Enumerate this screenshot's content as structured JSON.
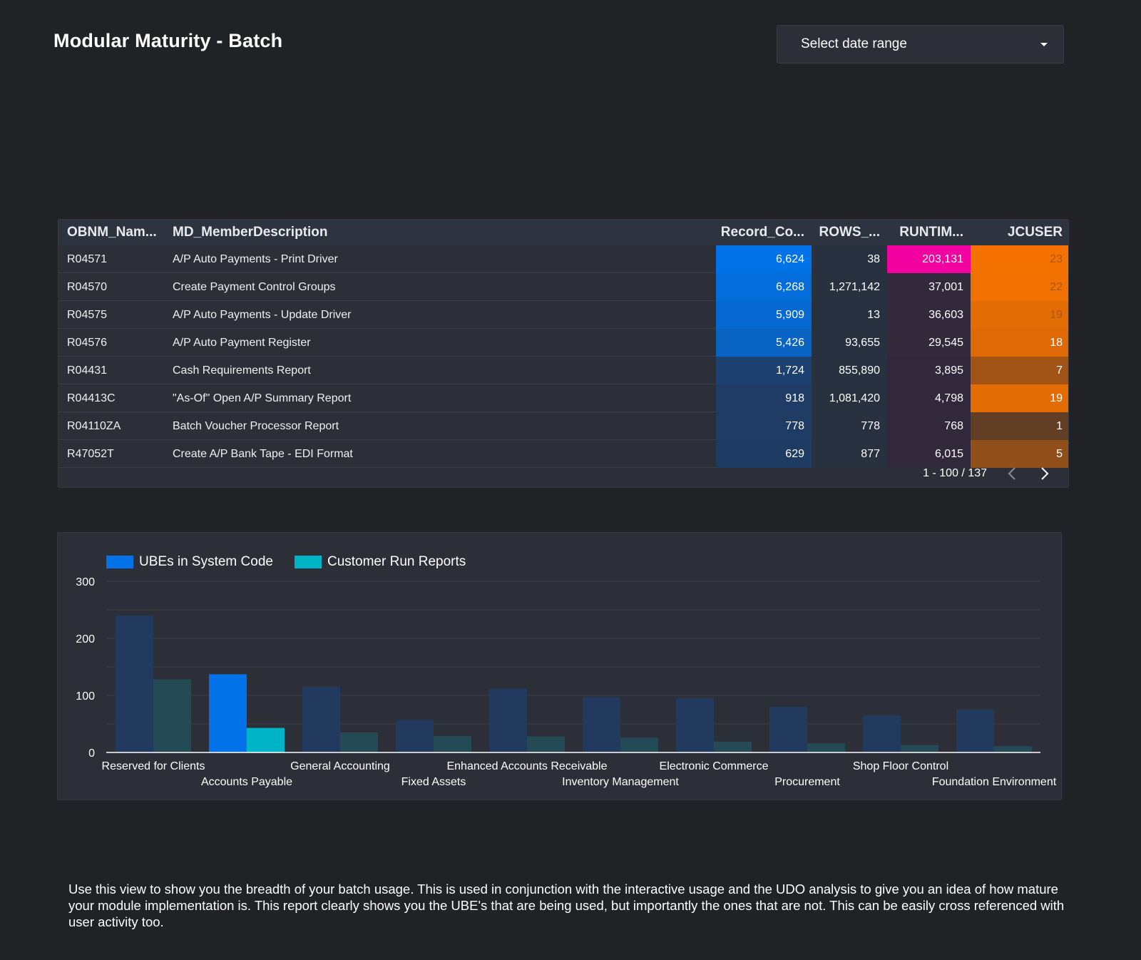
{
  "header": {
    "title": "Modular Maturity - Batch",
    "date_range_placeholder": "Select date range"
  },
  "table": {
    "columns": [
      "OBNM_Nam...",
      "MD_MemberDescription",
      "Record_Co...",
      "ROWS_...",
      "RUNTIM...",
      "JCUSER"
    ],
    "rows": [
      {
        "obnm": "R04571",
        "desc": "A/P Auto Payments - Print Driver",
        "record": "6,624",
        "rows": "38",
        "runtime": "203,131",
        "jcuser": "23"
      },
      {
        "obnm": "R04570",
        "desc": "Create Payment Control Groups",
        "record": "6,268",
        "rows": "1,271,142",
        "runtime": "37,001",
        "jcuser": "22"
      },
      {
        "obnm": "R04575",
        "desc": "A/P Auto Payments - Update Driver",
        "record": "5,909",
        "rows": "13",
        "runtime": "36,603",
        "jcuser": "19"
      },
      {
        "obnm": "R04576",
        "desc": "A/P Auto Payment Register",
        "record": "5,426",
        "rows": "93,655",
        "runtime": "29,545",
        "jcuser": "18"
      },
      {
        "obnm": "R04431",
        "desc": "Cash Requirements Report",
        "record": "1,724",
        "rows": "855,890",
        "runtime": "3,895",
        "jcuser": "7"
      },
      {
        "obnm": "R04413C",
        "desc": "\"As-Of\" Open A/P Summary Report",
        "record": "918",
        "rows": "1,081,420",
        "runtime": "4,798",
        "jcuser": "19"
      },
      {
        "obnm": "R04110ZA",
        "desc": "Batch Voucher Processor Report",
        "record": "778",
        "rows": "778",
        "runtime": "768",
        "jcuser": "1"
      },
      {
        "obnm": "R47052T",
        "desc": "Create A/P Bank Tape - EDI Format",
        "record": "629",
        "rows": "877",
        "runtime": "6,015",
        "jcuser": "5"
      }
    ],
    "pagination": "1 - 100 / 137"
  },
  "colors": {
    "background": "#212226",
    "card": "#2d2f38",
    "record_scale": [
      "#1f3a60",
      "#0172e8"
    ],
    "rows_cell": "#283140",
    "runtime_scale": [
      "#31293b",
      "#f200a0"
    ],
    "jcuser_scale": [
      "#3a302e",
      "#f57200"
    ],
    "series_ube": "#0172e8",
    "series_customer": "#00b4c8",
    "series_ube_dim": "#223a5e",
    "series_customer_dim": "#234a55"
  },
  "chart_data": {
    "type": "bar",
    "categories": [
      "Reserved for Clients",
      "Accounts Payable",
      "General Accounting",
      "Fixed Assets",
      "Enhanced Accounts Receivable",
      "Inventory Management",
      "Electronic Commerce",
      "Procurement",
      "Shop Floor Control",
      "Foundation Environment"
    ],
    "series": [
      {
        "name": "UBEs in System Code",
        "values": [
          240,
          137,
          115,
          57,
          112,
          97,
          95,
          80,
          65,
          75
        ]
      },
      {
        "name": "Customer Run Reports",
        "values": [
          128,
          43,
          35,
          29,
          28,
          26,
          19,
          16,
          13,
          11
        ]
      }
    ],
    "highlighted_category": "Accounts Payable",
    "ylim": [
      0,
      300
    ],
    "yticks": [
      0,
      100,
      200,
      300
    ],
    "grid": true,
    "legend": "top-left"
  },
  "footer": {
    "description": "Use this view to show you the breadth of your batch usage.  This is used in conjunction with the interactive usage and the UDO analysis to give you an idea of how mature your module implementation is.  This report clearly shows you the UBE's that are being used, but importantly the ones that are not.  This can be easily cross referenced with user activity too."
  }
}
